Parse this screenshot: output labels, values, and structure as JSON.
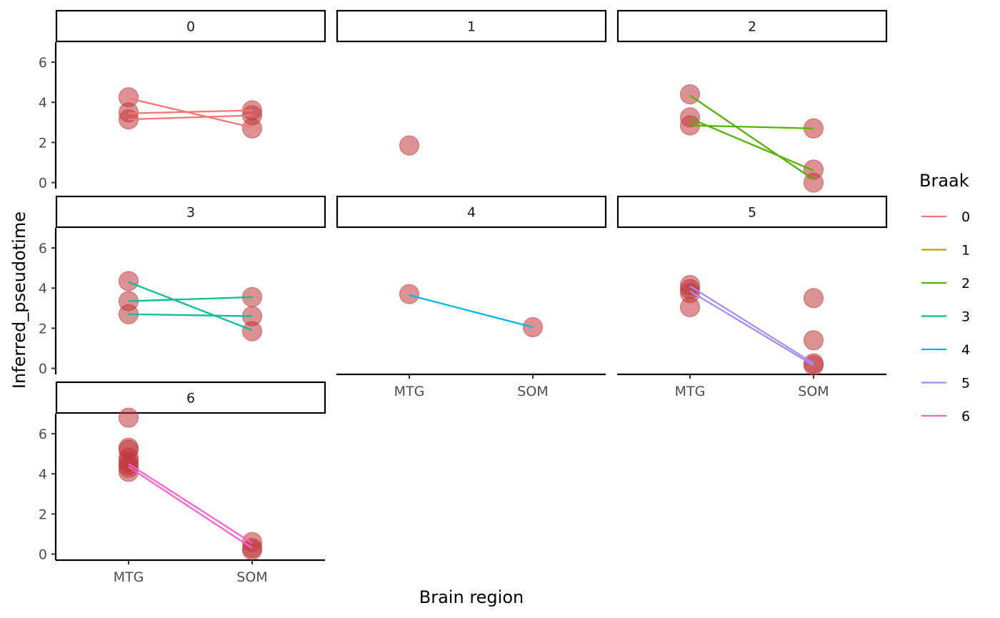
{
  "chart_data": {
    "type": "scatter",
    "facet_variable": "Braak",
    "facets": [
      {
        "label": "0",
        "points": [
          {
            "x": "MTG",
            "y": 4.25
          },
          {
            "x": "MTG",
            "y": 3.5
          },
          {
            "x": "MTG",
            "y": 3.15
          },
          {
            "x": "SOM",
            "y": 3.6
          },
          {
            "x": "SOM",
            "y": 3.35
          },
          {
            "x": "SOM",
            "y": 2.7
          }
        ],
        "lines": [
          {
            "y": [
              4.2,
              2.75
            ]
          },
          {
            "y": [
              3.45,
              3.6
            ]
          },
          {
            "y": [
              3.15,
              3.35
            ]
          }
        ]
      },
      {
        "label": "1",
        "points": [
          {
            "x": "MTG",
            "y": 1.85
          }
        ],
        "lines": []
      },
      {
        "label": "2",
        "points": [
          {
            "x": "MTG",
            "y": 4.4
          },
          {
            "x": "MTG",
            "y": 3.25
          },
          {
            "x": "MTG",
            "y": 2.85
          },
          {
            "x": "SOM",
            "y": 2.7
          },
          {
            "x": "SOM",
            "y": 0.65
          },
          {
            "x": "SOM",
            "y": 0.0
          }
        ],
        "lines": [
          {
            "y": [
              4.35,
              0.15
            ]
          },
          {
            "y": [
              2.85,
              2.7
            ]
          },
          {
            "y": [
              3.2,
              0.6
            ]
          }
        ]
      },
      {
        "label": "3",
        "points": [
          {
            "x": "MTG",
            "y": 4.35
          },
          {
            "x": "MTG",
            "y": 3.35
          },
          {
            "x": "MTG",
            "y": 2.7
          },
          {
            "x": "SOM",
            "y": 3.55
          },
          {
            "x": "SOM",
            "y": 2.6
          },
          {
            "x": "SOM",
            "y": 1.85
          }
        ],
        "lines": [
          {
            "y": [
              4.3,
              1.9
            ]
          },
          {
            "y": [
              3.35,
              3.55
            ]
          },
          {
            "y": [
              2.7,
              2.6
            ]
          }
        ]
      },
      {
        "label": "4",
        "points": [
          {
            "x": "MTG",
            "y": 3.7
          },
          {
            "x": "SOM",
            "y": 2.05
          }
        ],
        "lines": [
          {
            "y": [
              3.65,
              2.05
            ]
          }
        ]
      },
      {
        "label": "5",
        "points": [
          {
            "x": "MTG",
            "y": 4.15
          },
          {
            "x": "MTG",
            "y": 3.95
          },
          {
            "x": "MTG",
            "y": 3.75
          },
          {
            "x": "MTG",
            "y": 3.05
          },
          {
            "x": "SOM",
            "y": 3.5
          },
          {
            "x": "SOM",
            "y": 1.4
          },
          {
            "x": "SOM",
            "y": 0.25
          },
          {
            "x": "SOM",
            "y": 0.15
          }
        ],
        "lines": [
          {
            "y": [
              4.1,
              0.25
            ]
          },
          {
            "y": [
              3.85,
              0.15
            ]
          }
        ]
      },
      {
        "label": "6",
        "points": [
          {
            "x": "MTG",
            "y": 6.8
          },
          {
            "x": "MTG",
            "y": 5.3
          },
          {
            "x": "MTG",
            "y": 5.2
          },
          {
            "x": "MTG",
            "y": 4.8
          },
          {
            "x": "MTG",
            "y": 4.6
          },
          {
            "x": "MTG",
            "y": 4.45
          },
          {
            "x": "MTG",
            "y": 4.3
          },
          {
            "x": "MTG",
            "y": 4.1
          },
          {
            "x": "SOM",
            "y": 0.6
          },
          {
            "x": "SOM",
            "y": 0.3
          },
          {
            "x": "SOM",
            "y": 0.2
          }
        ],
        "lines": [
          {
            "y": [
              4.5,
              0.55
            ]
          },
          {
            "y": [
              4.35,
              0.3
            ]
          }
        ]
      }
    ],
    "categories": [
      "MTG",
      "SOM"
    ],
    "y_ticks": [
      0,
      2,
      4,
      6
    ],
    "ylim": [
      -0.3,
      7.0
    ],
    "xlabel": "Brain region",
    "ylabel": "Inferred_pseudotime",
    "point_color": "#c0393b",
    "legend": {
      "title": "Braak",
      "position": "right",
      "items": [
        {
          "label": "0",
          "color": "#F8766D"
        },
        {
          "label": "1",
          "color": "#C49A00"
        },
        {
          "label": "2",
          "color": "#53B400"
        },
        {
          "label": "3",
          "color": "#00C094"
        },
        {
          "label": "4",
          "color": "#00B6EB"
        },
        {
          "label": "5",
          "color": "#A58AFF"
        },
        {
          "label": "6",
          "color": "#FB61D7"
        }
      ]
    }
  }
}
